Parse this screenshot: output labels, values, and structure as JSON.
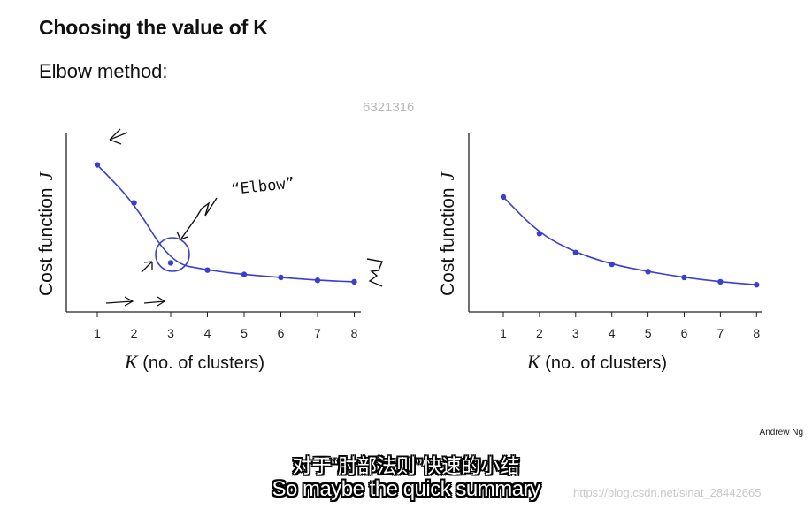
{
  "slide": {
    "title": "Choosing the value of K",
    "subtitle": "Elbow method:",
    "watermark_id": "6321316",
    "credit": "Andrew Ng"
  },
  "annotations": {
    "elbow_label": "“Elbow”"
  },
  "captions": {
    "chinese": "对于“肘部法则”快速的小结",
    "english": "So maybe the quick summary"
  },
  "blog_watermark": "https://blog.csdn.net/sinat_28442665",
  "colors": {
    "curve": "#3a3fcf",
    "axis": "#222222"
  },
  "chart_data": [
    {
      "type": "line",
      "ylabel": "Cost function",
      "ylabel_symbol": "J",
      "xlabel_symbol": "K",
      "xlabel": "(no. of clusters)",
      "x": [
        1,
        2,
        3,
        4,
        5,
        6,
        7,
        8
      ],
      "x_tick_labels": [
        "1",
        "2",
        "3",
        "4",
        "5",
        "6",
        "7",
        "8"
      ],
      "y": [
        100,
        74,
        33,
        28,
        25,
        23,
        21,
        20
      ],
      "ylim": [
        0,
        110
      ],
      "grid": false
    },
    {
      "type": "line",
      "ylabel": "Cost function",
      "ylabel_symbol": "J",
      "xlabel_symbol": "K",
      "xlabel": "(no. of clusters)",
      "x": [
        1,
        2,
        3,
        4,
        5,
        6,
        7,
        8
      ],
      "x_tick_labels": [
        "1",
        "2",
        "3",
        "4",
        "5",
        "6",
        "7",
        "8"
      ],
      "y": [
        78,
        53,
        40,
        32,
        27,
        23,
        20,
        18
      ],
      "ylim": [
        0,
        110
      ],
      "grid": false
    }
  ]
}
